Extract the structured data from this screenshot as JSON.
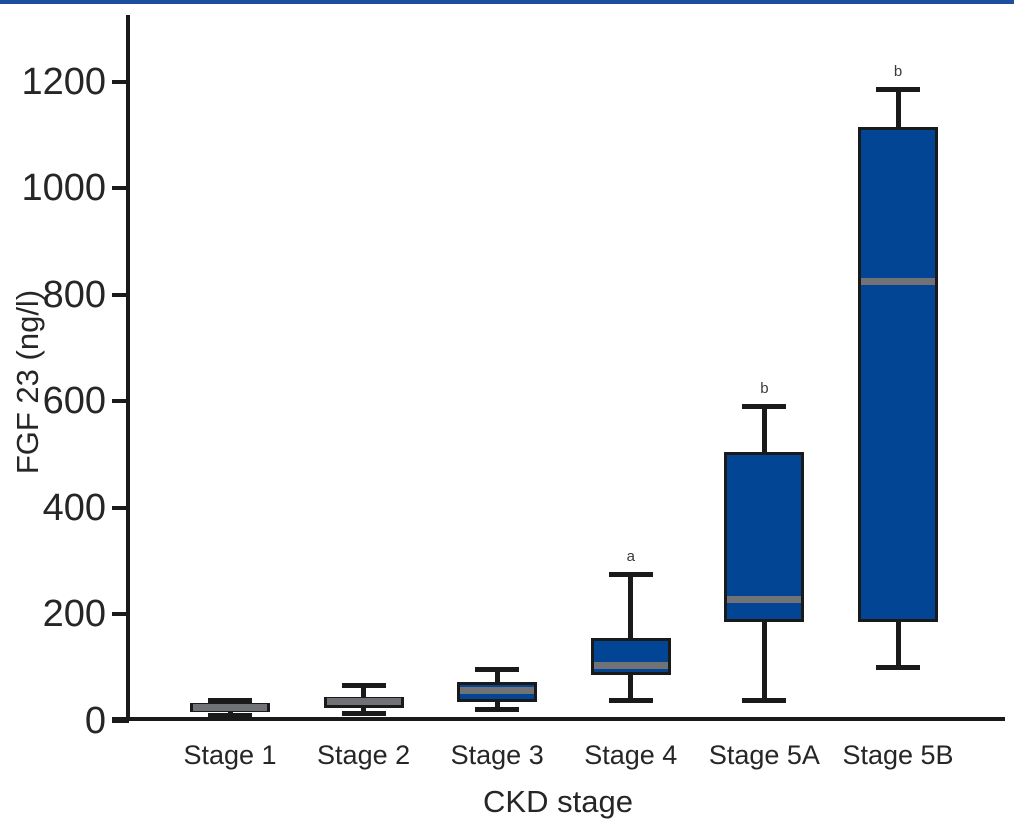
{
  "page": {
    "background_color": "#ffffff",
    "top_border_color": "#1d4f9f"
  },
  "chart_data": {
    "type": "box",
    "title": "",
    "xlabel": "CKD stage",
    "ylabel": "FGF 23 (ng/l)",
    "ylim": [
      0,
      1200
    ],
    "yticks": [
      0,
      200,
      400,
      600,
      800,
      1000,
      1200
    ],
    "grid": false,
    "legend": "none",
    "categories": [
      "Stage 1",
      "Stage 2",
      "Stage 3",
      "Stage 4",
      "Stage 5A",
      "Stage 5B"
    ],
    "series": [
      {
        "category": "Stage 1",
        "min": 10,
        "q1": 16,
        "median": 25,
        "q3": 33,
        "max": 38,
        "annotation": ""
      },
      {
        "category": "Stage 2",
        "min": 14,
        "q1": 23,
        "median": 35,
        "q3": 44,
        "max": 65,
        "annotation": ""
      },
      {
        "category": "Stage 3",
        "min": 20,
        "q1": 35,
        "median": 56,
        "q3": 73,
        "max": 95,
        "annotation": ""
      },
      {
        "category": "Stage 4",
        "min": 38,
        "q1": 85,
        "median": 103,
        "q3": 155,
        "max": 275,
        "annotation": "a"
      },
      {
        "category": "Stage 5A",
        "min": 37,
        "q1": 185,
        "median": 228,
        "q3": 505,
        "max": 590,
        "annotation": "b"
      },
      {
        "category": "Stage 5B",
        "min": 100,
        "q1": 185,
        "median": 825,
        "q3": 1115,
        "max": 1185,
        "annotation": "b"
      }
    ],
    "colors": {
      "box_fill": "#024594",
      "median_line": "#717275",
      "box_border": "#1a1a1a",
      "whisker": "#1a1a1a",
      "annotation_text": "#3a3a3a",
      "axis": "#1a1a1a",
      "tick_label": "#262626"
    }
  }
}
